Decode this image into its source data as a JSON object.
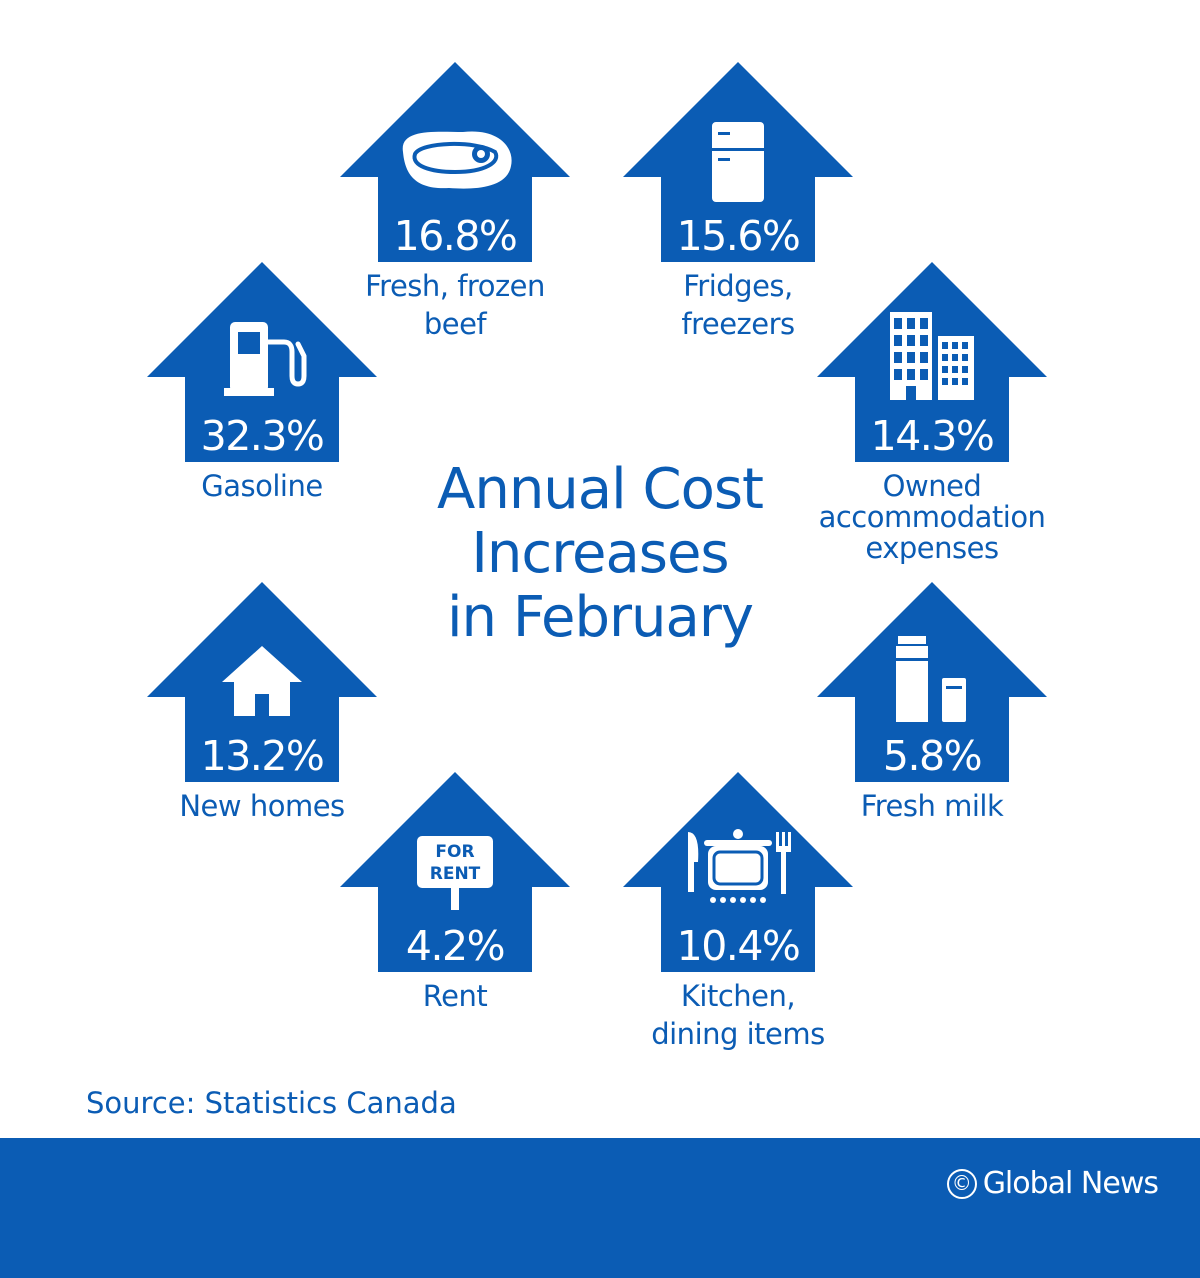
{
  "title_lines": [
    "Annual Cost",
    "Increases",
    "in February"
  ],
  "source": "Source: Statistics Canada",
  "brand": {
    "mark": "©",
    "name": "Global News"
  },
  "colors": {
    "primary": "#0b5cb4",
    "background": "#ffffff",
    "text_on_primary": "#ffffff"
  },
  "chart_data": {
    "type": "table",
    "title": "Annual Cost Increases in February",
    "unit": "%",
    "items": [
      {
        "label_lines": [
          "Fresh, frozen",
          "beef"
        ],
        "value": 16.8,
        "value_text": "16.8%",
        "icon": "steak-icon"
      },
      {
        "label_lines": [
          "Fridges,",
          "freezers"
        ],
        "value": 15.6,
        "value_text": "15.6%",
        "icon": "fridge-icon"
      },
      {
        "label_lines": [
          "Gasoline"
        ],
        "value": 32.3,
        "value_text": "32.3%",
        "icon": "gas-pump-icon"
      },
      {
        "label_lines": [
          "Owned",
          "accommodation",
          "expenses"
        ],
        "value": 14.3,
        "value_text": "14.3%",
        "icon": "buildings-icon"
      },
      {
        "label_lines": [
          "New homes"
        ],
        "value": 13.2,
        "value_text": "13.2%",
        "icon": "house-icon"
      },
      {
        "label_lines": [
          "Fresh milk"
        ],
        "value": 5.8,
        "value_text": "5.8%",
        "icon": "milk-carton-icon"
      },
      {
        "label_lines": [
          "Rent"
        ],
        "value": 4.2,
        "value_text": "4.2%",
        "icon": "for-rent-sign-icon",
        "icon_text": [
          "FOR",
          "RENT"
        ]
      },
      {
        "label_lines": [
          "Kitchen,",
          "dining items"
        ],
        "value": 10.4,
        "value_text": "10.4%",
        "icon": "kitchen-pot-icon"
      }
    ]
  }
}
